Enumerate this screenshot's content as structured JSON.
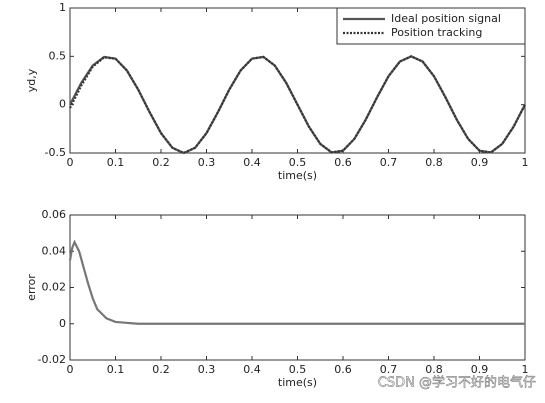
{
  "chart_data": [
    {
      "type": "line",
      "x_label": "time(s)",
      "y_label": "yd,y",
      "x": [
        0,
        0.025,
        0.05,
        0.075,
        0.1,
        0.125,
        0.15,
        0.175,
        0.2,
        0.225,
        0.25,
        0.275,
        0.3,
        0.325,
        0.35,
        0.375,
        0.4,
        0.425,
        0.45,
        0.475,
        0.5,
        0.525,
        0.55,
        0.575,
        0.6,
        0.625,
        0.65,
        0.675,
        0.7,
        0.725,
        0.75,
        0.775,
        0.8,
        0.825,
        0.85,
        0.875,
        0.9,
        0.925,
        0.95,
        0.975,
        1
      ],
      "series": [
        {
          "name": "Ideal position signal",
          "color": "#555555",
          "style": "solid",
          "values": [
            0,
            0.227,
            0.405,
            0.494,
            0.476,
            0.354,
            0.155,
            -0.078,
            -0.294,
            -0.446,
            -0.5,
            -0.446,
            -0.294,
            -0.078,
            0.155,
            0.354,
            0.476,
            0.494,
            0.405,
            0.227,
            0,
            -0.227,
            -0.405,
            -0.494,
            -0.476,
            -0.354,
            -0.155,
            0.078,
            0.294,
            0.446,
            0.5,
            0.446,
            0.294,
            0.078,
            -0.155,
            -0.354,
            -0.476,
            -0.494,
            -0.405,
            -0.227,
            0
          ]
        },
        {
          "name": "Position tracking",
          "color": "#333333",
          "style": "dotted",
          "values": [
            -0.035,
            0.199,
            0.393,
            0.49,
            0.475,
            0.354,
            0.155,
            -0.078,
            -0.294,
            -0.446,
            -0.5,
            -0.446,
            -0.294,
            -0.078,
            0.155,
            0.354,
            0.476,
            0.494,
            0.405,
            0.227,
            0,
            -0.227,
            -0.405,
            -0.494,
            -0.476,
            -0.354,
            -0.155,
            0.078,
            0.294,
            0.446,
            0.5,
            0.446,
            0.294,
            0.078,
            -0.155,
            -0.354,
            -0.476,
            -0.494,
            -0.405,
            -0.227,
            0
          ]
        }
      ],
      "xlim": [
        0,
        1
      ],
      "xticks": [
        0,
        0.1,
        0.2,
        0.3,
        0.4,
        0.5,
        0.6,
        0.7,
        0.8,
        0.9,
        1
      ],
      "ylim": [
        -0.5,
        1
      ],
      "yticks": [
        -0.5,
        0,
        0.5,
        1
      ],
      "legend": "upper right"
    },
    {
      "type": "line",
      "x_label": "time(s)",
      "y_label": "error",
      "x": [
        0,
        0.005,
        0.01,
        0.02,
        0.03,
        0.04,
        0.05,
        0.06,
        0.08,
        0.1,
        0.15,
        0.2,
        0.3,
        0.4,
        0.5,
        0.6,
        0.7,
        0.8,
        0.9,
        1
      ],
      "series": [
        {
          "name": "error",
          "color": "#777777",
          "style": "solid",
          "values": [
            0.035,
            0.042,
            0.045,
            0.04,
            0.031,
            0.022,
            0.014,
            0.008,
            0.003,
            0.001,
            0,
            0,
            0,
            0,
            0,
            0,
            0,
            0,
            0,
            0
          ]
        }
      ],
      "xlim": [
        0,
        1
      ],
      "xticks": [
        0,
        0.1,
        0.2,
        0.3,
        0.4,
        0.5,
        0.6,
        0.7,
        0.8,
        0.9,
        1
      ],
      "ylim": [
        -0.02,
        0.06
      ],
      "yticks": [
        -0.02,
        0,
        0.02,
        0.04,
        0.06
      ],
      "legend": "none"
    }
  ],
  "watermark": "CSDN @学习不好的电气仔"
}
